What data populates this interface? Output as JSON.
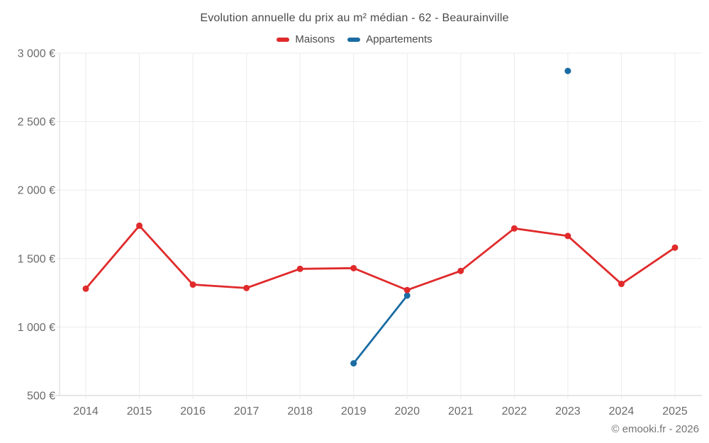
{
  "watermark": "© emooki.fr - 2026",
  "chart_data": {
    "type": "line",
    "title": "Evolution annuelle du prix au m² médian - 62 - Beaurainville",
    "categories": [
      "2014",
      "2015",
      "2016",
      "2017",
      "2018",
      "2019",
      "2020",
      "2021",
      "2022",
      "2023",
      "2024",
      "2025"
    ],
    "series": [
      {
        "name": "Maisons",
        "color": "#e02a2b",
        "values": [
          1280,
          1740,
          1310,
          1285,
          1425,
          1430,
          1270,
          1410,
          1720,
          1665,
          1315,
          1580
        ]
      },
      {
        "name": "Appartements",
        "color": "#1a6ca3",
        "values": [
          null,
          null,
          null,
          null,
          null,
          735,
          1230,
          null,
          null,
          2870,
          null,
          null
        ]
      }
    ],
    "xlabel": "",
    "ylabel": "",
    "ylim": [
      500,
      3000
    ],
    "y_ticks": [
      {
        "value": 500,
        "label": "500 €"
      },
      {
        "value": 1000,
        "label": "1 000 €"
      },
      {
        "value": 1500,
        "label": "1 500 €"
      },
      {
        "value": 2000,
        "label": "2 000 €"
      },
      {
        "value": 2500,
        "label": "2 500 €"
      },
      {
        "value": 3000,
        "label": "3 000 €"
      }
    ],
    "grid": true,
    "legend_position": "top"
  }
}
